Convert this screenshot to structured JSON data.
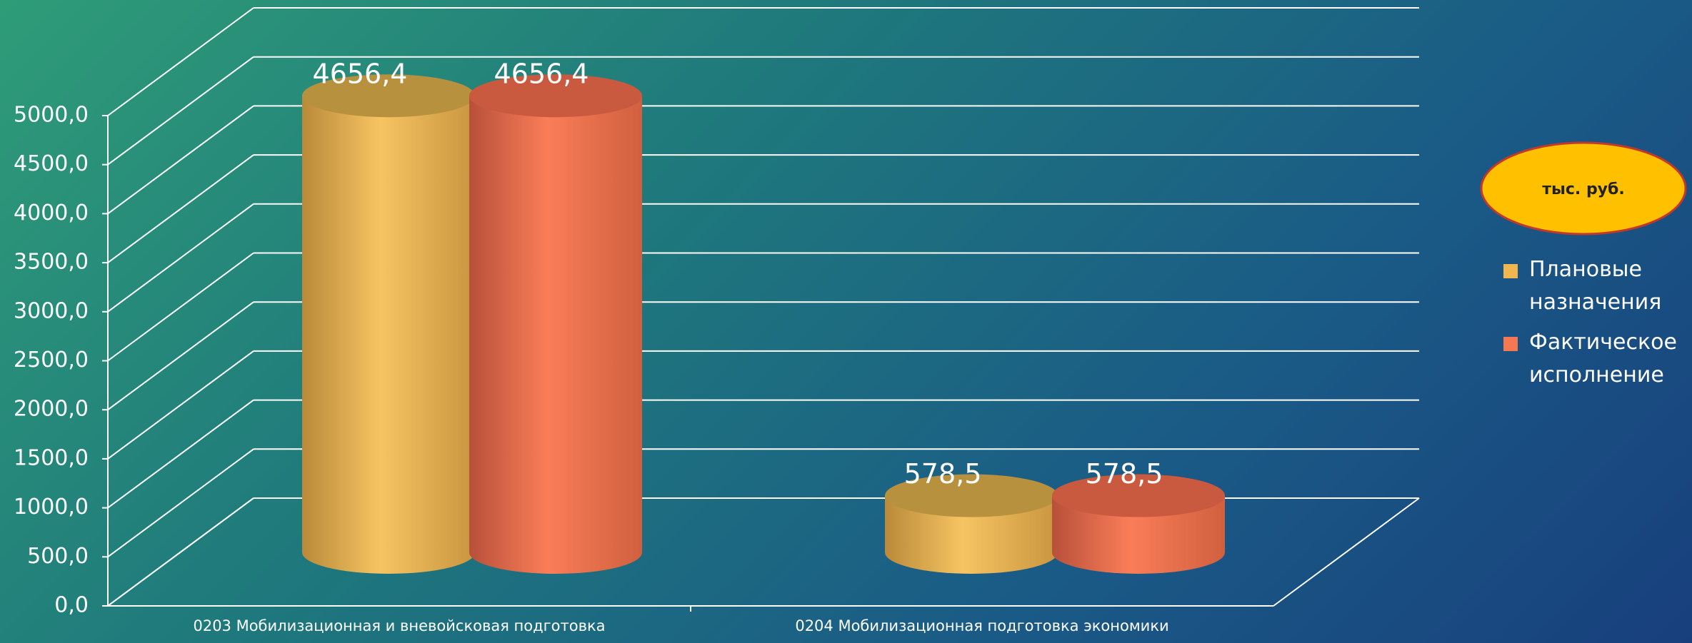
{
  "chart_data": {
    "type": "bar3d",
    "annotation": "тыс. руб.",
    "categories": [
      "0203 Мобилизационная и вневойсковая подготовка",
      "0204 Мобилизационная подготовка экономики"
    ],
    "series": [
      {
        "name": "Плановые назначения",
        "color": "#f2b650",
        "values": [
          4656.4,
          578.5
        ],
        "value_labels": [
          "4656,4",
          "578,5"
        ]
      },
      {
        "name": "Фактическое исполнение",
        "color": "#f47852",
        "values": [
          4656.4,
          578.5
        ],
        "value_labels": [
          "4656,4",
          "578,5"
        ]
      }
    ],
    "ylim": [
      0,
      5000
    ],
    "yticks": [
      {
        "value": 0,
        "label": "0,0"
      },
      {
        "value": 500,
        "label": "500,0"
      },
      {
        "value": 1000,
        "label": "1000,0"
      },
      {
        "value": 1500,
        "label": "1500,0"
      },
      {
        "value": 2000,
        "label": "2000,0"
      },
      {
        "value": 2500,
        "label": "2500,0"
      },
      {
        "value": 3000,
        "label": "3000,0"
      },
      {
        "value": 3500,
        "label": "3500,0"
      },
      {
        "value": 4000,
        "label": "4000,0"
      },
      {
        "value": 4500,
        "label": "4500,0"
      },
      {
        "value": 5000,
        "label": "5000,0"
      }
    ],
    "grid": true,
    "legend": "right"
  }
}
